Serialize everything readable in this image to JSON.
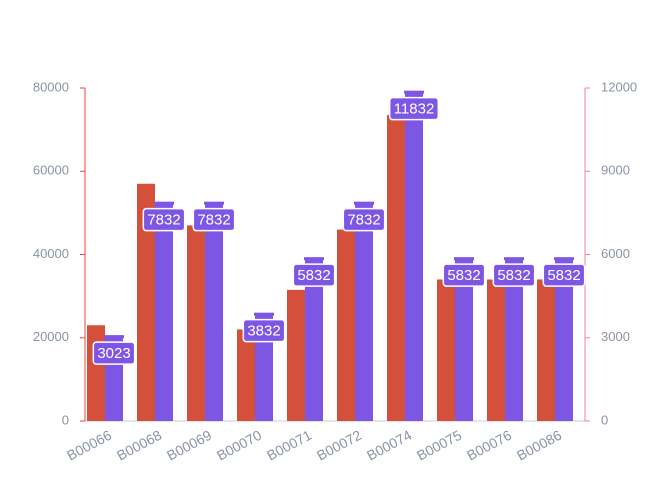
{
  "chart_data": {
    "type": "bar",
    "categories": [
      "B00066",
      "B00068",
      "B00069",
      "B00070",
      "B00071",
      "B00072",
      "B00074",
      "B00075",
      "B00076",
      "B00086"
    ],
    "series": [
      {
        "color": "#d5503a",
        "values": [
          23000,
          57000,
          47000,
          22000,
          31500,
          46000,
          73500,
          34000,
          34000,
          34000
        ]
      },
      {
        "color": "#7d57e4",
        "axis": "y2",
        "values": [
          3023,
          7832,
          7832,
          3832,
          5832,
          7832,
          11832,
          5832,
          5832,
          5832
        ],
        "show_labels": true
      }
    ],
    "ylim": [
      0,
      80000
    ],
    "yticks": [
      0,
      20000,
      40000,
      60000,
      80000
    ],
    "y2lim": [
      0,
      12000
    ],
    "y2ticks": [
      0,
      3000,
      6000,
      9000,
      12000
    ],
    "y_axis_color": "#e8443a",
    "y2_axis_color": "#f27fa0"
  }
}
